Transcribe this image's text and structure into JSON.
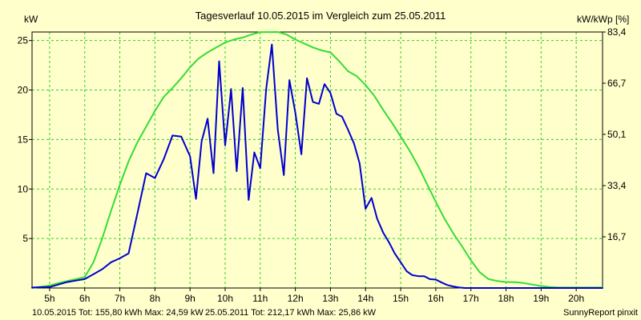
{
  "colors": {
    "background": "#FFFFCC",
    "grid": "#33CC33",
    "series_2015": "#0000CC",
    "series_2011": "#33DD33",
    "footer_2015": "#0000CC",
    "footer_2011": "#22AA22"
  },
  "footer": {
    "summary_2015": "10.05.2015 Tot: 155,80 kWh Max: 24,59 kW",
    "summary_2011": "25.05.2011 Tot: 212,17 kWh Max: 25,86 kW",
    "credit": "SunnyReport pinxit"
  },
  "chart_data": {
    "type": "line",
    "title": "Tagesverlauf 10.05.2015 im Vergleich zum 25.05.2011",
    "ylabel_left": "kW",
    "ylabel_right": "kW/kWp [%]",
    "xlabel": "",
    "xlim": [
      4.5,
      20.75
    ],
    "ylim": [
      0,
      25.86
    ],
    "grid": true,
    "x_ticks": [
      5,
      6,
      7,
      8,
      9,
      10,
      11,
      12,
      13,
      14,
      15,
      16,
      17,
      18,
      19,
      20
    ],
    "x_tick_labels": [
      "5h",
      "6h",
      "7h",
      "8h",
      "9h",
      "10h",
      "11h",
      "12h",
      "13h",
      "14h",
      "15h",
      "16h",
      "17h",
      "18h",
      "19h",
      "20h"
    ],
    "y_ticks": [
      5,
      10,
      15,
      20,
      25
    ],
    "y_tick_labels": [
      "5",
      "10",
      "15",
      "20",
      "25"
    ],
    "y2_ticks": [
      5.17,
      10.34,
      15.52,
      20.69,
      25.86
    ],
    "y2_tick_labels": [
      "16,7",
      "33,4",
      "50,1",
      "66,7",
      "83,4"
    ],
    "series": [
      {
        "name": "10.05.2015",
        "x": [
          4.5,
          5,
          5.25,
          5.5,
          5.75,
          6,
          6.25,
          6.5,
          6.75,
          7,
          7.25,
          7.5,
          7.75,
          8,
          8.25,
          8.5,
          8.75,
          9,
          9.17,
          9.33,
          9.5,
          9.67,
          9.83,
          10,
          10.17,
          10.33,
          10.5,
          10.67,
          10.83,
          11,
          11.17,
          11.33,
          11.5,
          11.67,
          11.83,
          12,
          12.17,
          12.33,
          12.5,
          12.67,
          12.83,
          13,
          13.17,
          13.33,
          13.5,
          13.67,
          13.83,
          14,
          14.17,
          14.33,
          14.5,
          14.67,
          14.83,
          15,
          15.17,
          15.33,
          15.5,
          15.67,
          15.83,
          16,
          16.17,
          16.33,
          16.5,
          16.67,
          16.83,
          17,
          17.25,
          17.5,
          17.75,
          18,
          18.25,
          18.5,
          18.75,
          19,
          19.25,
          19.5,
          19.75,
          20,
          20.25,
          20.5,
          20.75
        ],
        "y": [
          0.05,
          0.1,
          0.35,
          0.6,
          0.75,
          0.9,
          1.4,
          1.9,
          2.6,
          3.0,
          3.5,
          7.5,
          11.6,
          11.1,
          13.0,
          15.4,
          15.3,
          13.3,
          9.0,
          14.8,
          17.1,
          11.6,
          22.9,
          14.4,
          20.1,
          11.8,
          20.2,
          8.9,
          13.7,
          12.1,
          20.1,
          24.6,
          16.0,
          11.4,
          21.0,
          17.7,
          13.5,
          21.2,
          18.8,
          18.6,
          20.6,
          19.7,
          17.6,
          17.3,
          16.0,
          14.6,
          12.6,
          8.0,
          9.1,
          7.0,
          5.6,
          4.6,
          3.5,
          2.6,
          1.7,
          1.3,
          1.2,
          1.2,
          0.9,
          0.85,
          0.55,
          0.3,
          0.15,
          0.05,
          0.0,
          0.0,
          0.0,
          0.0,
          0.0,
          0.0,
          0.0,
          0.0,
          0.0,
          0.0,
          0.0,
          0.0,
          0.0,
          0.0,
          0.0,
          0.0,
          0.0
        ]
      },
      {
        "name": "25.05.2011",
        "x": [
          4.5,
          5,
          5.25,
          5.5,
          5.75,
          6,
          6.25,
          6.5,
          6.75,
          7,
          7.25,
          7.5,
          7.75,
          8,
          8.25,
          8.5,
          8.75,
          9,
          9.25,
          9.5,
          9.75,
          10,
          10.25,
          10.5,
          10.75,
          11,
          11.25,
          11.5,
          11.75,
          12,
          12.25,
          12.5,
          12.75,
          13,
          13.25,
          13.5,
          13.75,
          14,
          14.25,
          14.5,
          14.75,
          15,
          15.25,
          15.5,
          15.75,
          16,
          16.25,
          16.5,
          16.75,
          17,
          17.25,
          17.5,
          17.75,
          18,
          18.25,
          18.5,
          18.75,
          19,
          19.25,
          19.5,
          19.75,
          20,
          20.25,
          20.5,
          20.75
        ],
        "y": [
          0.0,
          0.25,
          0.5,
          0.7,
          0.9,
          1.1,
          2.6,
          5.0,
          7.8,
          10.4,
          12.8,
          14.7,
          16.3,
          17.9,
          19.3,
          20.2,
          21.2,
          22.3,
          23.2,
          23.8,
          24.3,
          24.8,
          25.1,
          25.3,
          25.6,
          25.85,
          25.85,
          25.86,
          25.6,
          25.1,
          24.7,
          24.3,
          24.0,
          23.8,
          22.9,
          21.9,
          21.4,
          20.5,
          19.4,
          18.0,
          16.7,
          15.3,
          13.9,
          12.3,
          10.5,
          8.7,
          7.0,
          5.5,
          4.2,
          2.8,
          1.6,
          0.9,
          0.7,
          0.6,
          0.6,
          0.5,
          0.35,
          0.2,
          0.1,
          0.05,
          0.05,
          0.05,
          0.05,
          0.05,
          0.05
        ]
      }
    ]
  }
}
